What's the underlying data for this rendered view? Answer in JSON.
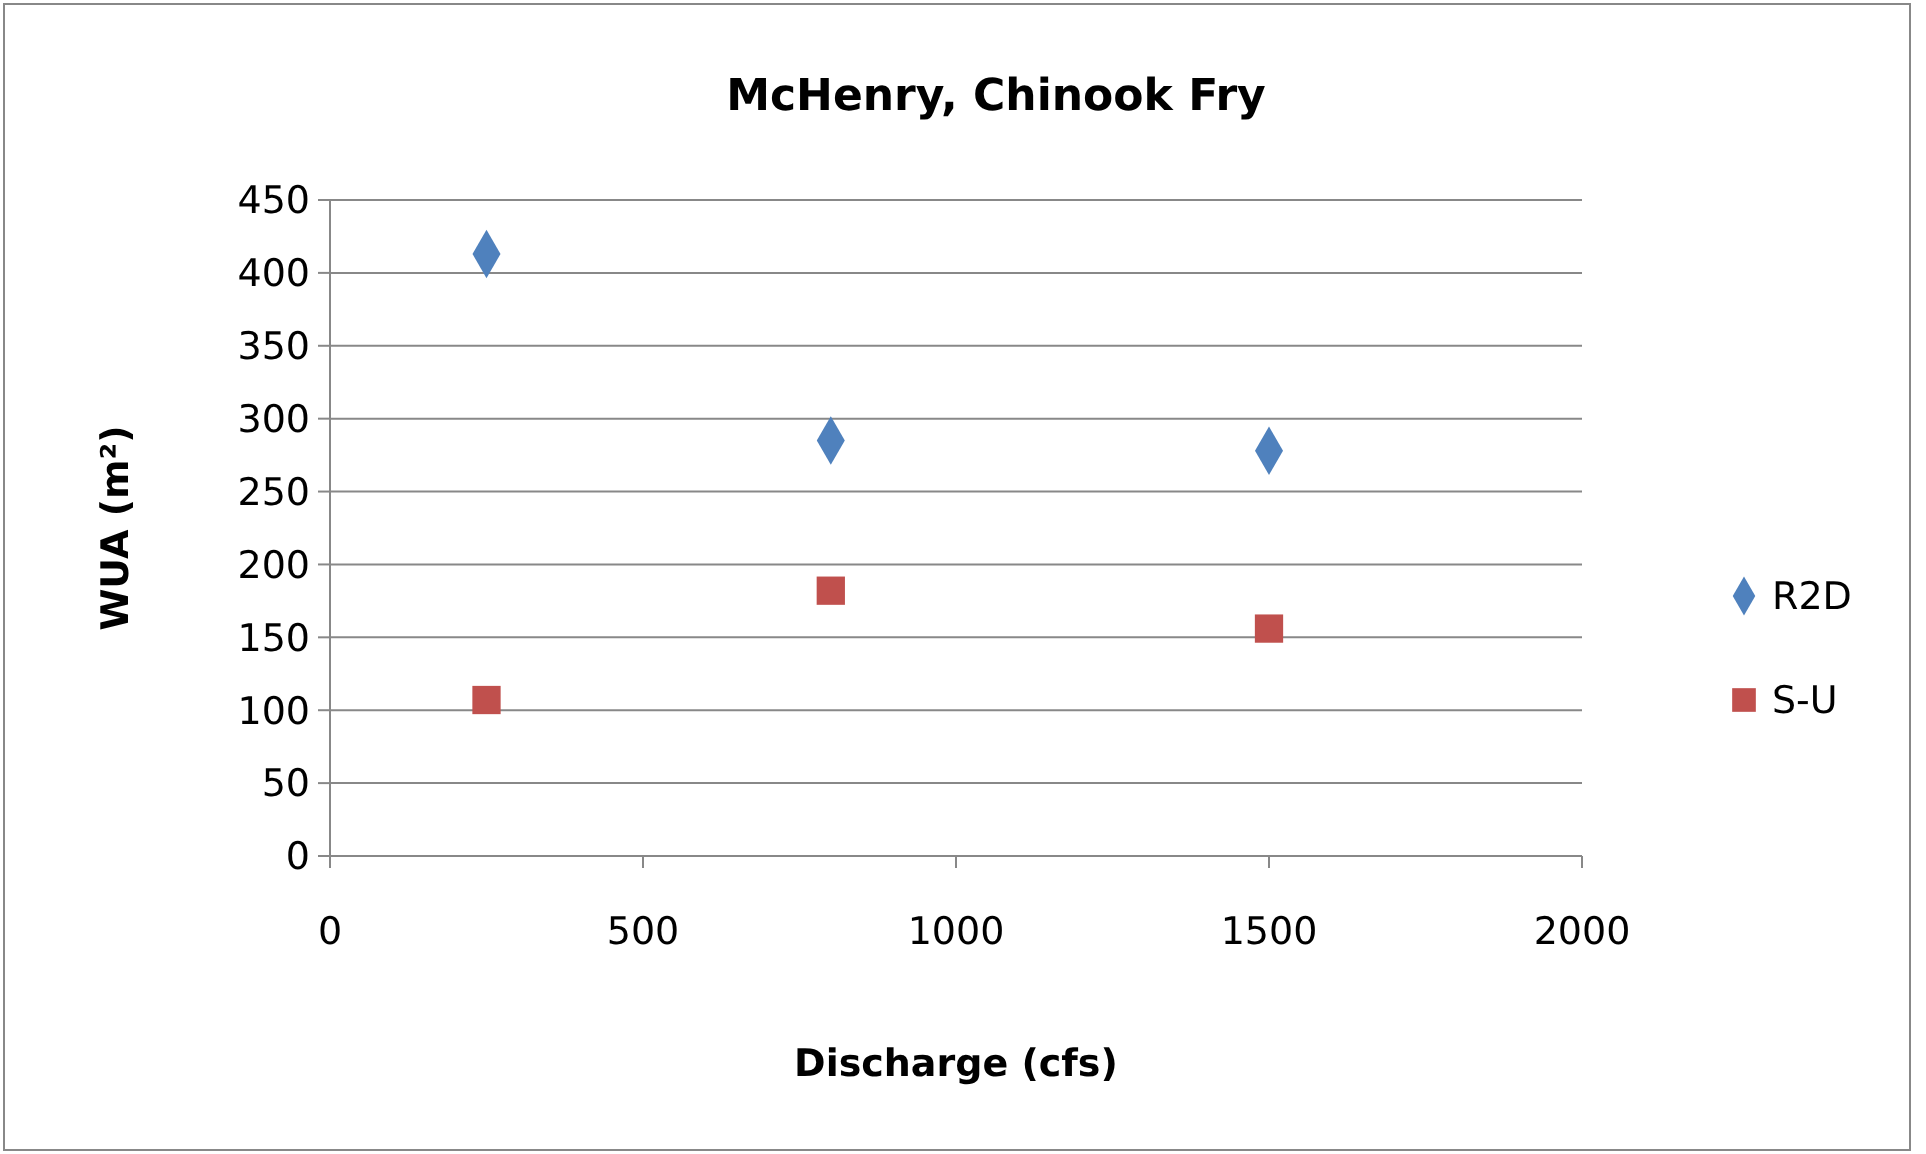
{
  "chart_data": {
    "type": "scatter",
    "title": "McHenry, Chinook Fry",
    "xlabel": "Discharge (cfs)",
    "ylabel": "WUA (m²)",
    "xlim": [
      0,
      2000
    ],
    "xticks": [
      0,
      500,
      1000,
      1500,
      2000
    ],
    "ylim": [
      0,
      450
    ],
    "yticks": [
      0,
      50,
      100,
      150,
      200,
      250,
      300,
      350,
      400,
      450
    ],
    "grid": "y",
    "legend": "right",
    "series": [
      {
        "name": "R2D",
        "color": "#4f81bd",
        "marker": "diamond",
        "x": [
          250,
          800,
          1500
        ],
        "values": [
          413,
          285,
          278
        ]
      },
      {
        "name": "S-U",
        "color": "#c0504d",
        "marker": "square",
        "x": [
          250,
          800,
          1500
        ],
        "values": [
          107,
          182,
          156
        ]
      }
    ]
  }
}
